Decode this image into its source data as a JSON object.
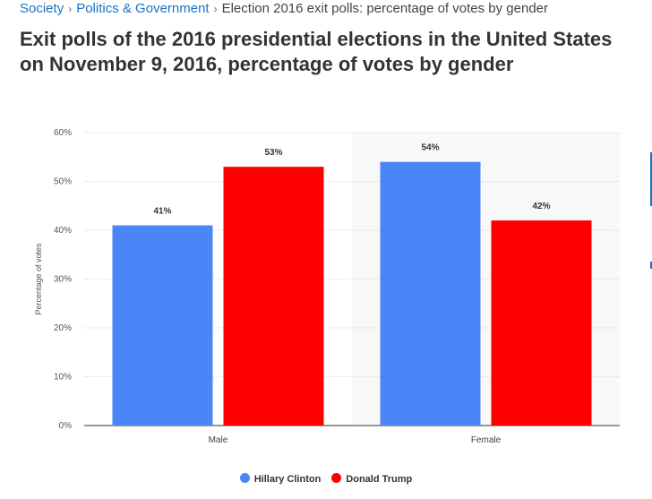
{
  "breadcrumb": {
    "items": [
      "Society",
      "Politics & Government"
    ],
    "current": "Election 2016 exit polls: percentage of votes by gender"
  },
  "page_title": "Exit polls of the 2016 presidential elections in the United States on November 9, 2016, percentage of votes by gender",
  "chart_data": {
    "type": "bar",
    "categories": [
      "Male",
      "Female"
    ],
    "series": [
      {
        "name": "Hillary Clinton",
        "color": "#4a86f7",
        "values": [
          41,
          54
        ]
      },
      {
        "name": "Donald Trump",
        "color": "#ff0000",
        "values": [
          53,
          42
        ]
      }
    ],
    "ylabel": "Percentage of votes",
    "ylim": [
      0,
      60
    ],
    "yticks": [
      "0%",
      "10%",
      "20%",
      "30%",
      "40%",
      "50%",
      "60%"
    ],
    "grid": true,
    "legend": "bottom"
  }
}
